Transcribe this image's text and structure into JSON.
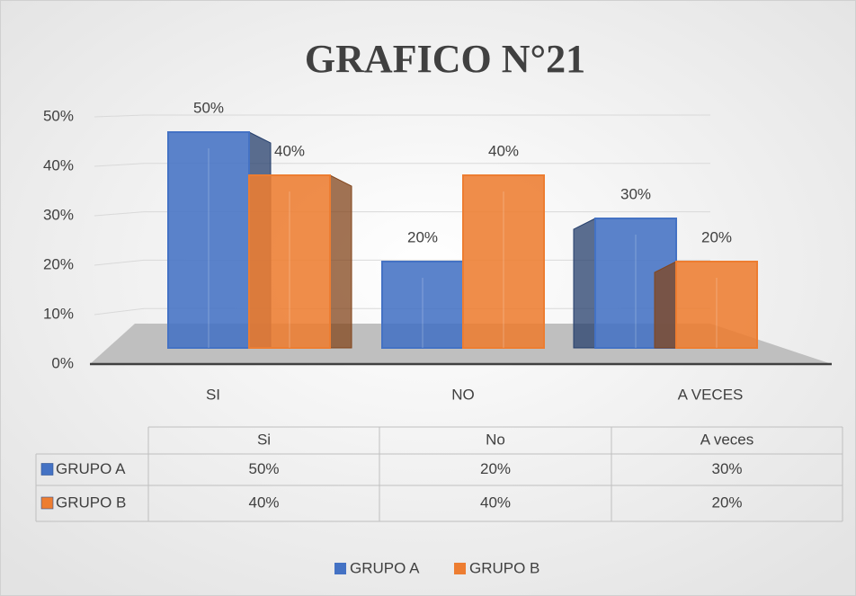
{
  "chart_data": {
    "type": "bar3d",
    "title": "GRAFICO N°21",
    "categories": [
      "SI",
      "NO",
      "A VECES"
    ],
    "table_categories": [
      "Si",
      "No",
      "A veces"
    ],
    "series": [
      {
        "name": "GRUPO A",
        "color": "#4472c4",
        "values": [
          50,
          20,
          30
        ],
        "value_labels": [
          "50%",
          "20%",
          "30%"
        ]
      },
      {
        "name": "GRUPO B",
        "color": "#ed7d31",
        "values": [
          40,
          40,
          20
        ],
        "value_labels": [
          "40%",
          "40%",
          "20%"
        ]
      }
    ],
    "ylim": [
      0,
      50
    ],
    "yticks": [
      {
        "value": 0,
        "label": "0%"
      },
      {
        "value": 10,
        "label": "10%"
      },
      {
        "value": 20,
        "label": "20%"
      },
      {
        "value": 30,
        "label": "30%"
      },
      {
        "value": 40,
        "label": "40%"
      },
      {
        "value": 50,
        "label": "50%"
      }
    ],
    "grid": true,
    "legend": "bottom"
  }
}
